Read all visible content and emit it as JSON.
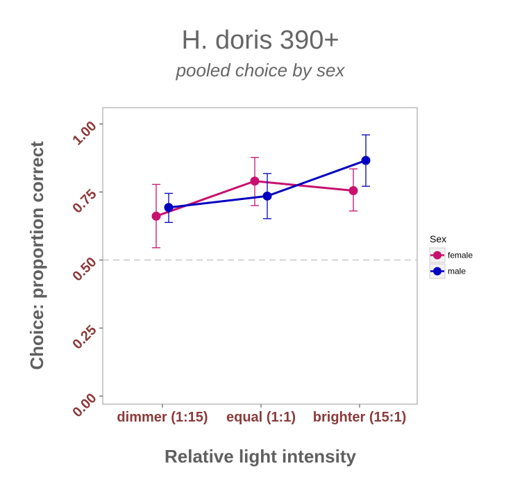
{
  "chart_data": {
    "type": "line",
    "title": "H. doris 390+",
    "subtitle": "pooled choice by sex",
    "xlabel": "Relative light intensity",
    "ylabel": "Choice: proportion correct",
    "categories": [
      "dimmer (1:15)",
      "equal (1:1)",
      "brighter (15:1)"
    ],
    "yticks": [
      "0.00",
      "0.25",
      "0.50",
      "0.75",
      "1.00"
    ],
    "ytick_values": [
      0,
      0.25,
      0.5,
      0.75,
      1.0
    ],
    "ylim": [
      -0.03,
      1.06
    ],
    "reference_line": 0.5,
    "error_bars": true,
    "legend": {
      "title": "Sex",
      "position": "right"
    },
    "grid": false,
    "series": [
      {
        "name": "female",
        "color": "#c8106e",
        "values": [
          0.661,
          0.79,
          0.755
        ],
        "lower": [
          0.545,
          0.7,
          0.68
        ],
        "upper": [
          0.778,
          0.877,
          0.835
        ]
      },
      {
        "name": "male",
        "color": "#0000c0",
        "values": [
          0.693,
          0.735,
          0.866
        ],
        "lower": [
          0.638,
          0.652,
          0.771
        ],
        "upper": [
          0.745,
          0.818,
          0.96
        ]
      }
    ]
  }
}
